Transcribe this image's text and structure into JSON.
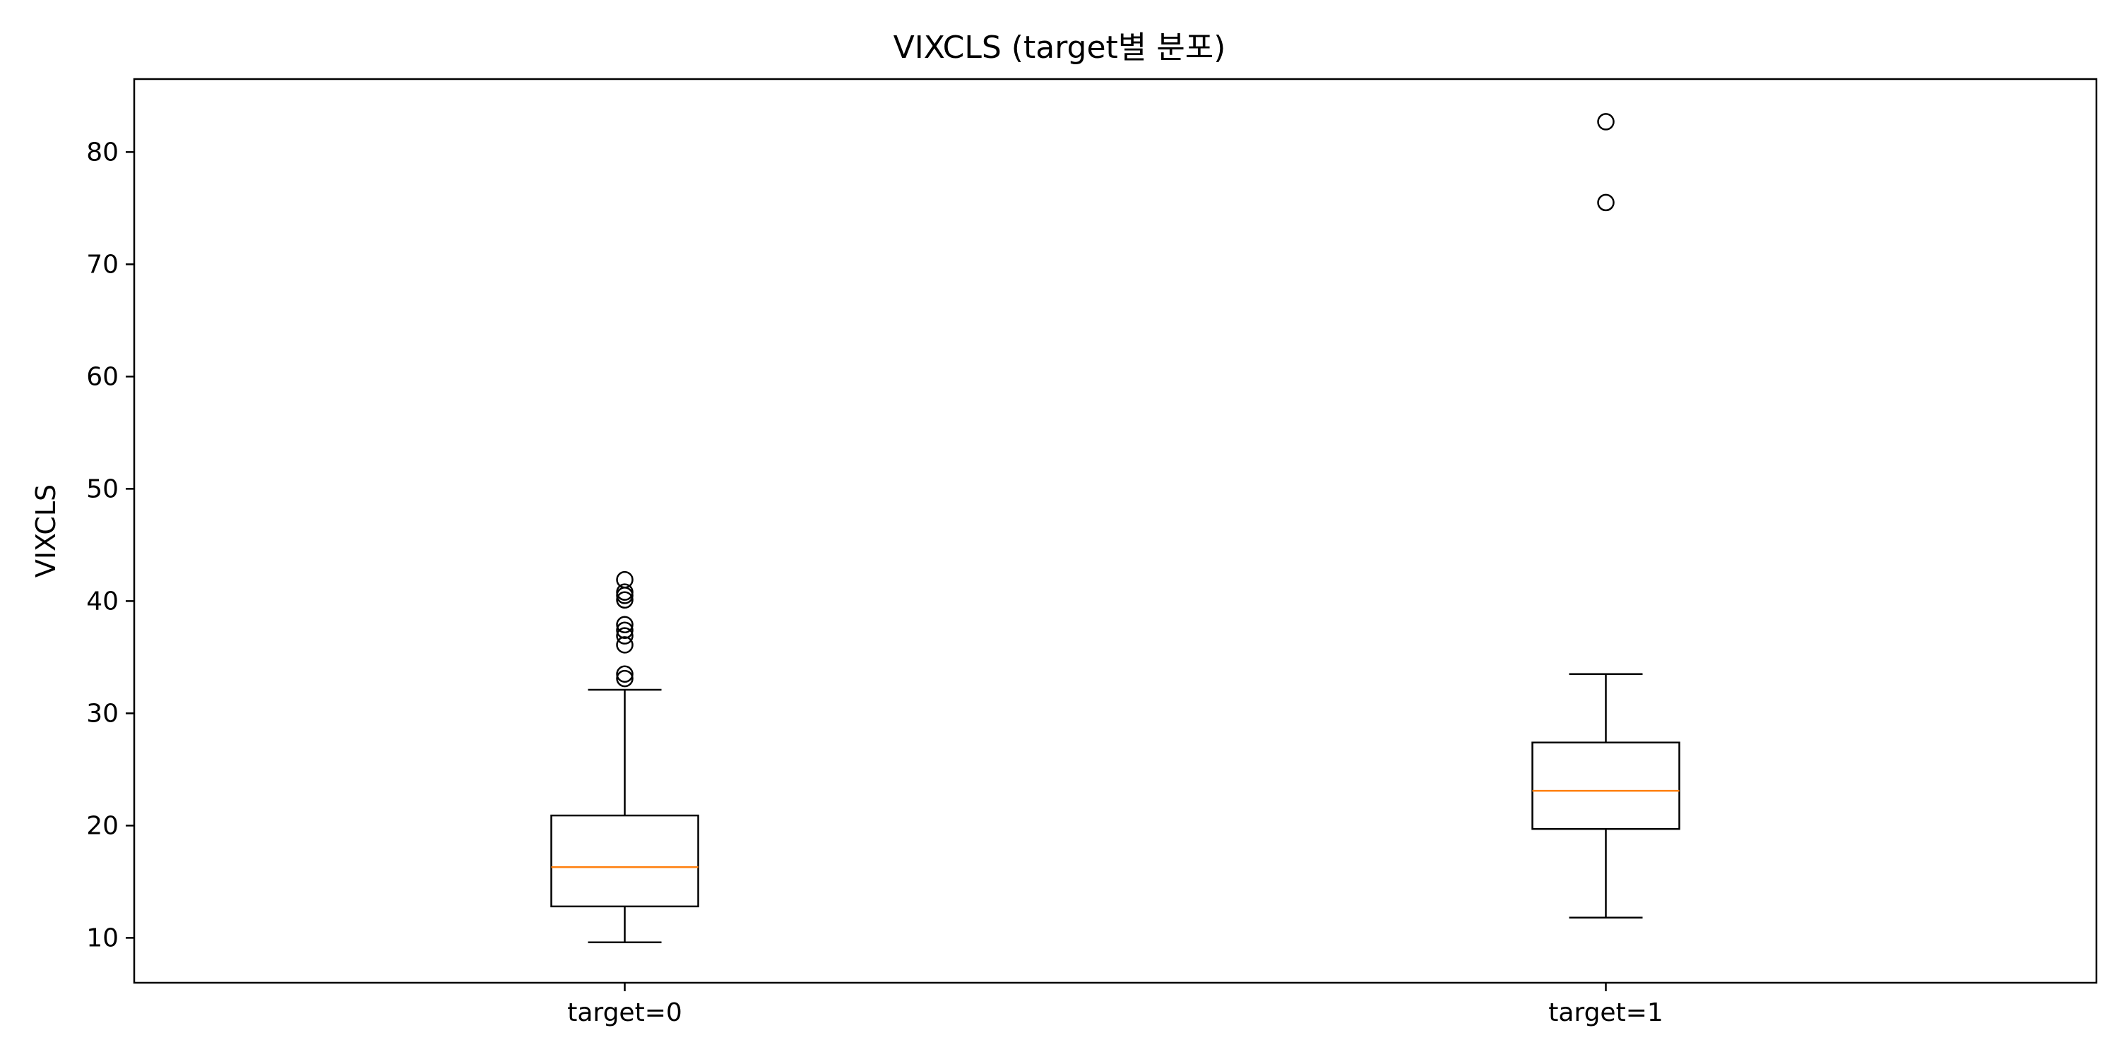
{
  "chart_data": {
    "type": "box",
    "title": "VIXCLS (target별 분포)",
    "xlabel": "",
    "ylabel": "VIXCLS",
    "ylim": [
      6,
      86.5
    ],
    "yticks": [
      10,
      20,
      30,
      40,
      50,
      60,
      70,
      80
    ],
    "grid": false,
    "categories": [
      "target=0",
      "target=1"
    ],
    "boxes": [
      {
        "label": "target=0",
        "whisker_low": 9.6,
        "q1": 12.8,
        "median": 16.3,
        "q3": 20.9,
        "whisker_high": 32.1,
        "outliers": [
          33.1,
          33.5,
          36.1,
          36.9,
          37.4,
          37.9,
          40.1,
          40.5,
          40.8,
          41.9
        ]
      },
      {
        "label": "target=1",
        "whisker_low": 11.8,
        "q1": 19.7,
        "median": 23.1,
        "q3": 27.4,
        "whisker_high": 33.5,
        "outliers": [
          75.5,
          82.7
        ]
      }
    ],
    "colors": {
      "box": "#000000",
      "median": "#ff7f0e",
      "outlier_edge": "#000000"
    }
  }
}
